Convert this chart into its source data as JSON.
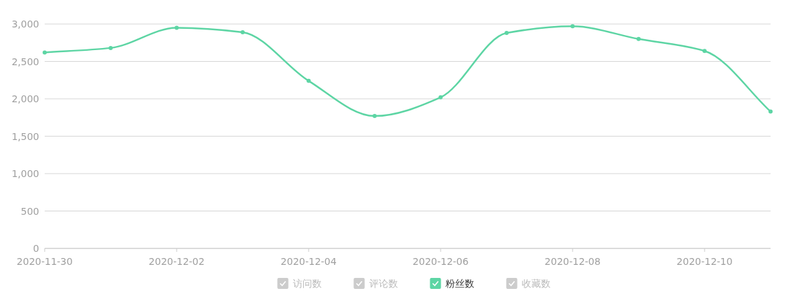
{
  "chart_data": {
    "type": "line",
    "x": [
      "2020-11-30",
      "2020-12-01",
      "2020-12-02",
      "2020-12-03",
      "2020-12-04",
      "2020-12-05",
      "2020-12-06",
      "2020-12-07",
      "2020-12-08",
      "2020-12-09",
      "2020-12-10",
      "2020-12-11"
    ],
    "series": [
      {
        "name": "访问数",
        "color": "#cccccc",
        "values": [
          null,
          null,
          null,
          null,
          null,
          null,
          null,
          null,
          null,
          null,
          null,
          null
        ]
      },
      {
        "name": "评论数",
        "color": "#cccccc",
        "values": [
          null,
          null,
          null,
          null,
          null,
          null,
          null,
          null,
          null,
          null,
          null,
          null
        ]
      },
      {
        "name": "粉丝数",
        "color": "#5dd5a4",
        "values": [
          2620,
          2680,
          2950,
          2890,
          2240,
          1770,
          2020,
          2880,
          2970,
          2800,
          2640,
          1830
        ]
      },
      {
        "name": "收藏数",
        "color": "#cccccc",
        "values": [
          null,
          null,
          null,
          null,
          null,
          null,
          null,
          null,
          null,
          null,
          null,
          null
        ]
      }
    ],
    "xlim": [
      "2020-11-30",
      "2020-12-11"
    ],
    "xticks": [
      "2020-11-30",
      "2020-12-02",
      "2020-12-04",
      "2020-12-06",
      "2020-12-08",
      "2020-12-10"
    ],
    "ylim": [
      0,
      3000
    ],
    "yticks": [
      0,
      500,
      {
        "value": 1000,
        "label": "1,000"
      },
      {
        "value": 1500,
        "label": "1,500"
      },
      {
        "value": 2000,
        "label": "2,000"
      },
      {
        "value": 2500,
        "label": "2,500"
      },
      {
        "value": 3000,
        "label": "3,000"
      }
    ],
    "grid": "y",
    "legend": "bottom",
    "marker": "circle",
    "line_style": "solid"
  }
}
